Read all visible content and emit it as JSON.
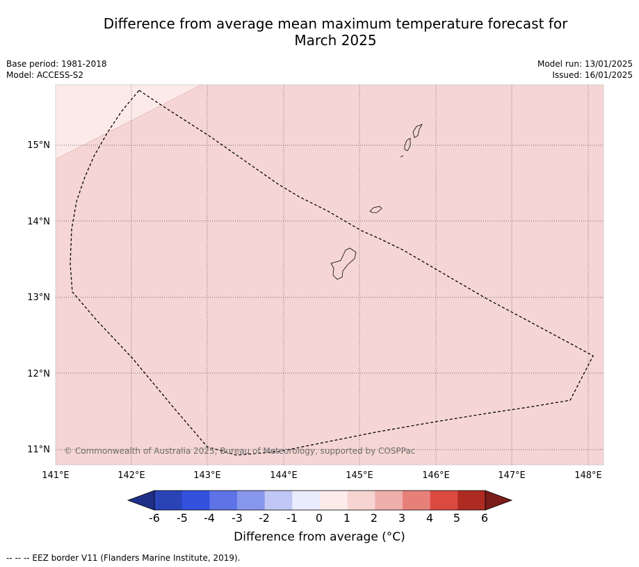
{
  "title_line1": "Difference from average mean maximum temperature forecast for",
  "title_line2": "March 2025",
  "base_period": "Base period: 1981-2018",
  "model": "Model: ACCESS-S2",
  "model_run": "Model run: 13/01/2025",
  "issued": "Issued: 16/01/2025",
  "lat_labels": [
    "15°N",
    "14°N",
    "13°N",
    "12°N",
    "11°N"
  ],
  "lon_labels": [
    "141°E",
    "142°E",
    "143°E",
    "144°E",
    "145°E",
    "146°E",
    "147°E",
    "148°E"
  ],
  "copyright": "© Commonwealth of Australia 2025, Bureau of Meteorology, supported by COSPPac",
  "colorbar": {
    "title": "Difference from average (°C)",
    "tick_labels": [
      "-6",
      "-5",
      "-4",
      "-3",
      "-2",
      "-1",
      "0",
      "1",
      "2",
      "3",
      "4",
      "5",
      "6"
    ],
    "colors": [
      "#1f2f88",
      "#2a44b8",
      "#3350de",
      "#5d73e6",
      "#8797ec",
      "#c0c7f4",
      "#e8ecfc",
      "#fbecea",
      "#f5d4d2",
      "#eeafab",
      "#e8807a",
      "#da4a40",
      "#ae2b22",
      "#7a1c1a"
    ]
  },
  "footnote": "-- -- -- EEZ border V11 (Flanders Marine Institute, 2019).",
  "colors": {
    "background_anomaly": "#f5d6d4",
    "light_anomaly": "#fbeae8"
  }
}
